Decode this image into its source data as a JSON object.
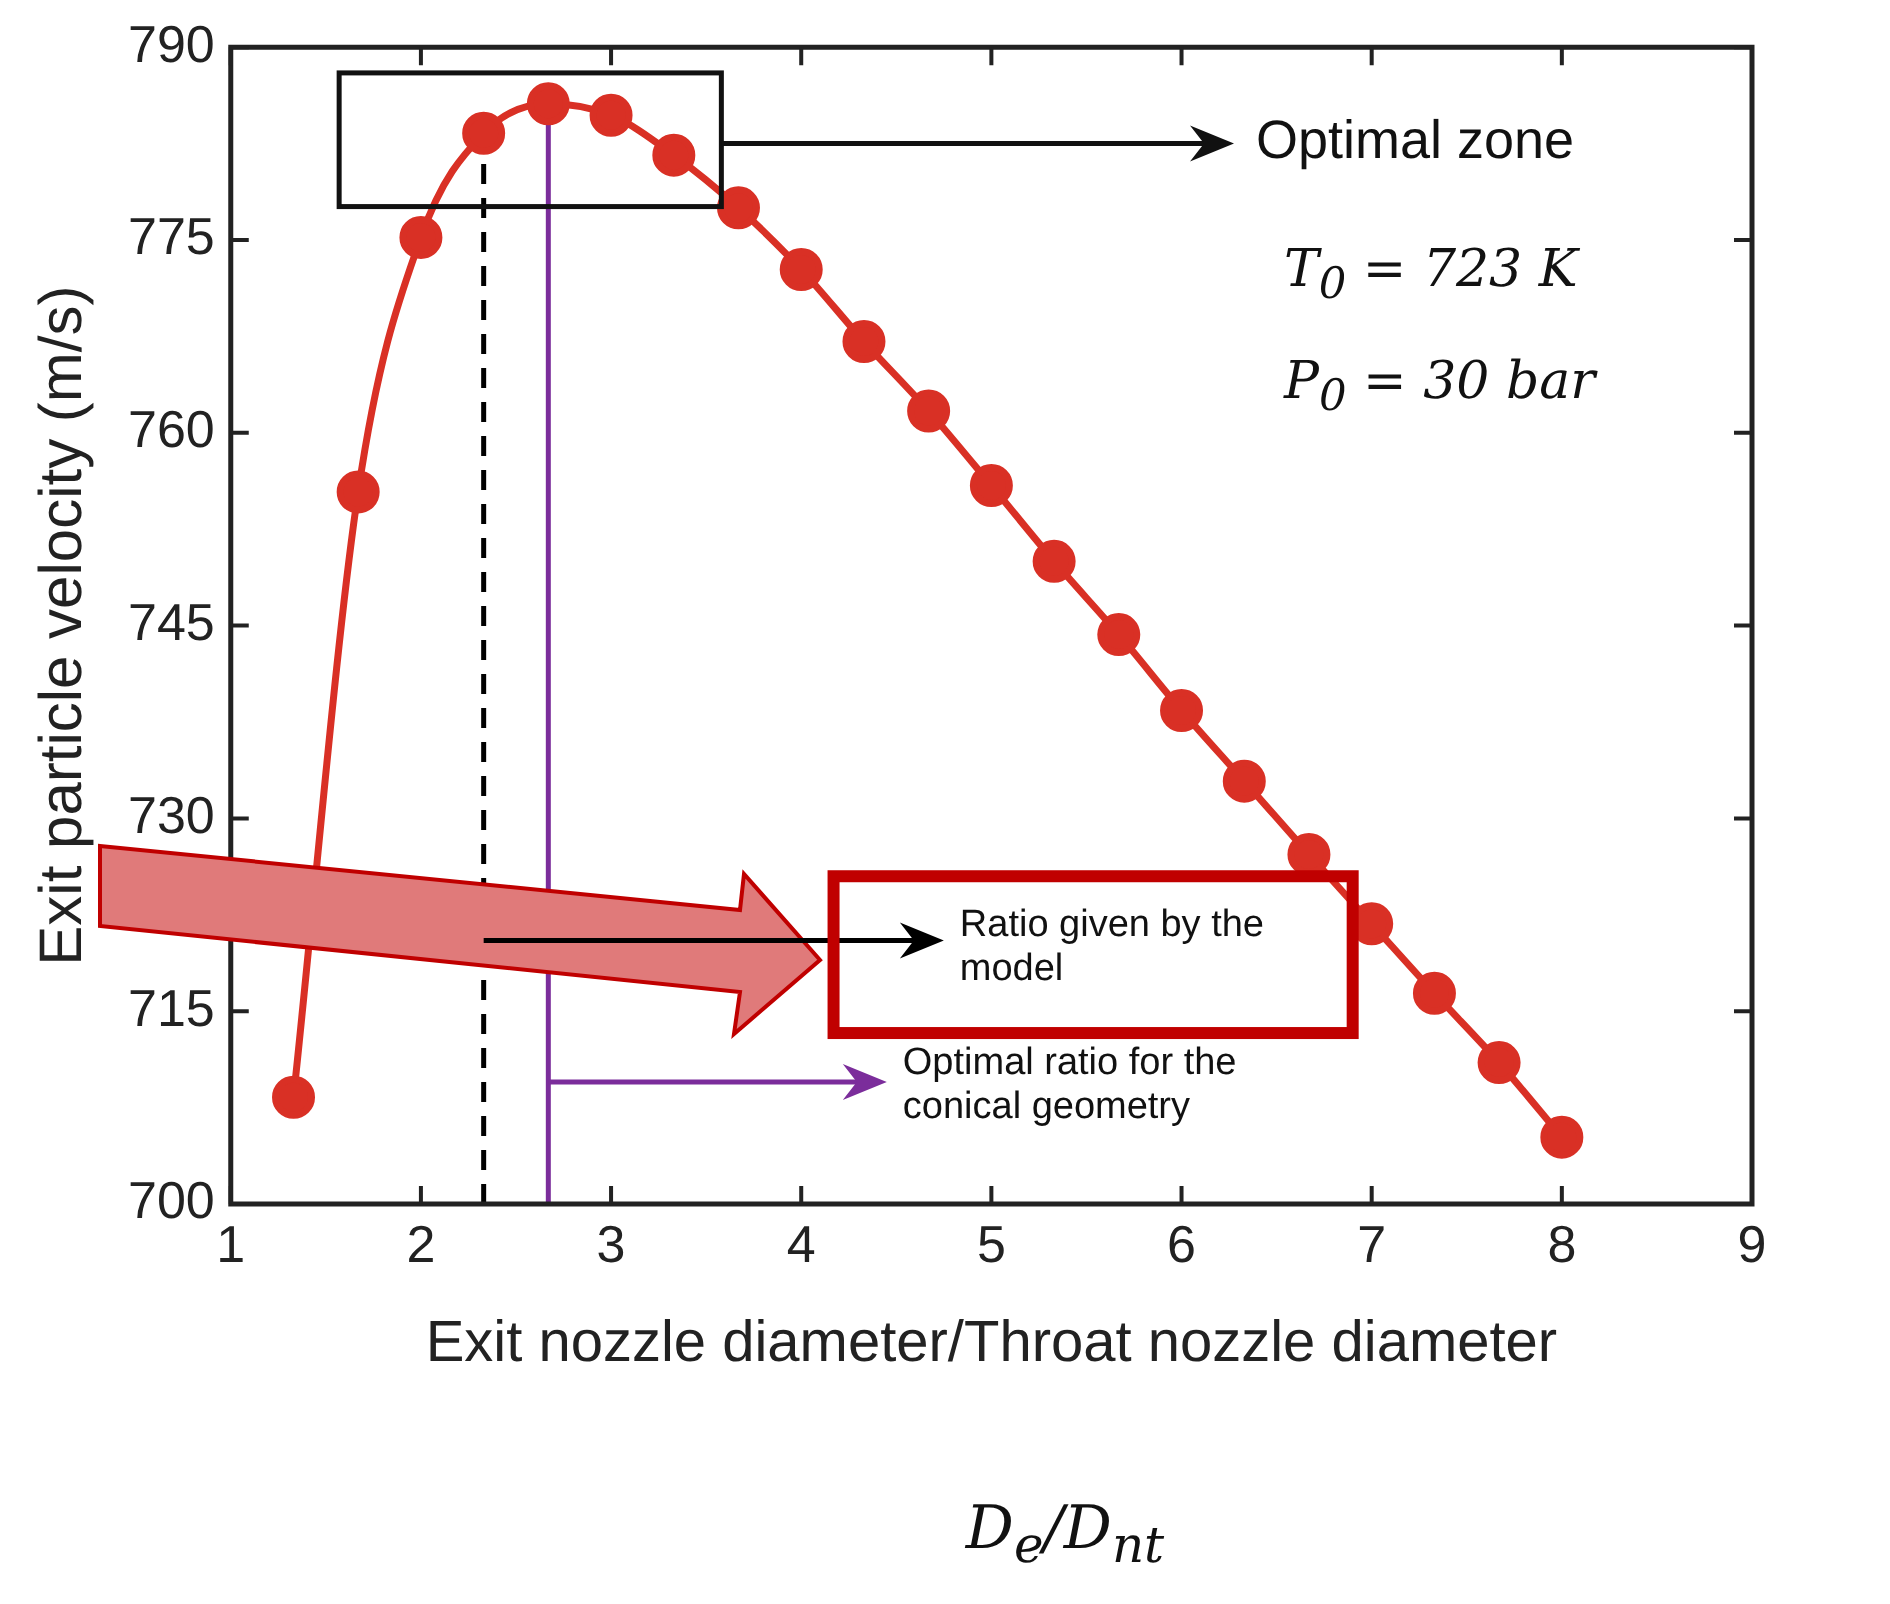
{
  "chart_data": {
    "type": "line",
    "xlabel": "Exit nozzle diameter/Throat nozzle diameter",
    "ylabel": "Exit particle velocity (m/s)",
    "x": [
      1.33,
      1.67,
      2,
      2.33,
      2.67,
      3,
      3.33,
      3.67,
      4,
      4.33,
      4.67,
      5,
      5.33,
      5.67,
      6,
      6.33,
      6.67,
      7,
      7.33,
      7.67,
      8
    ],
    "series": [
      {
        "color": "#d93025",
        "values": [
          708.3,
          755.4,
          775.2,
          783.3,
          785.6,
          784.7,
          781.6,
          777.5,
          772.7,
          767.1,
          761.7,
          755.9,
          750.0,
          744.3,
          738.4,
          732.9,
          727.2,
          721.8,
          716.4,
          711.0,
          705.2
        ]
      }
    ],
    "xlim": [
      1,
      9
    ],
    "xticks": [
      1,
      2,
      3,
      4,
      5,
      6,
      7,
      8,
      9
    ],
    "ylim": [
      700,
      790
    ],
    "yticks": [
      700,
      715,
      730,
      745,
      760,
      775,
      790
    ],
    "grid": false,
    "legend": false,
    "marker": "circle",
    "line_style": "solid",
    "ref_lines": [
      {
        "axis": "x",
        "value": 2.33,
        "label": "Ratio given by the model",
        "color": "#000000",
        "line_style": "dashed"
      },
      {
        "axis": "x",
        "value": 2.67,
        "label": "Optimal ratio for the conical geometry",
        "color": "#7b2d9b",
        "line_style": "solid"
      }
    ],
    "annotations": [
      "Optimal zone",
      "T$_{0}$ = 723 K",
      "P$_{0}$ = 30 bar",
      "D$_{e}$/D$_{nt}$"
    ]
  }
}
